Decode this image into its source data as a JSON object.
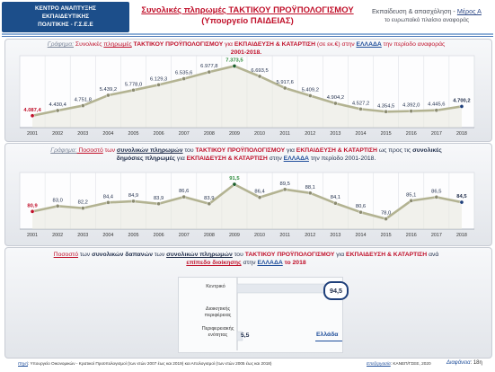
{
  "header": {
    "logo_lines": [
      "ΚΕΝΤΡΟ ΑΝΑΠΤΥΞΗΣ",
      "ΕΚΠΑΙΔΕΥΤΙΚΗΣ",
      "ΠΟΛΙΤΙΚΗΣ - Γ.Σ.Ε.Ε"
    ],
    "title_line1": "Συνολικές πληρωμές ΤΑΚΤΙΚΟΥ ΠΡΟΫΠΟΛΟΓΙΣΜΟΥ",
    "title_line2": "(Υπουργείο ΠΑΙΔΕΙΑΣ)",
    "right_line1_prefix": "Εκπαίδευση & απασχόληση - ",
    "right_line1_link": "Μέρος Α",
    "right_line2": "το ευρωπαϊκό πλαίσιο αναφοράς"
  },
  "panel1": {
    "label": "Γράφημα:",
    "t1": "Συνολικές ",
    "t2": "πληρωμές",
    "t3": " ΤΑΚΤΙΚΟΥ ΠΡΟΫΠΟΛΟΓΙΣΜΟΥ",
    "t4": " για ",
    "t5": "ΕΚΠΑΙΔΕΥΣΗ & ΚΑΤΑΡΤΙΣΗ",
    "t6": " (σε εκ.€) στην ",
    "t7": "ΕΛΛΑΔΑ",
    "t8": " την περίοδο αναφοράς",
    "t9": "2001-2018."
  },
  "panel2": {
    "label": "Γράφημα:",
    "t1": " Ποσοστό",
    "t2": " των ",
    "t3": "συνολικών πληρωμών",
    "t4": " του ",
    "t5": "ΤΑΚΤΙΚΟΥ ΠΡΟΫΠΟΛΟΓΙΣΜΟΥ",
    "t6": " για ",
    "t7": "ΕΚΠΑΙΔΕΥΣΗ & ΚΑΤΑΡΤΙΣΗ",
    "t8": " ως προς τις ",
    "t9": "συνολικές",
    "t10": "δημόσιες πληρωμές",
    "t11": " για ",
    "t12": "ΕΚΠΑΙΔΕΥΣΗ & ΚΑΤΑΡΤΙΣΗ",
    "t13": " στην ",
    "t14": "ΕΛΛΑΔΑ",
    "t15": " την περίοδο 2001-2018."
  },
  "panel3": {
    "t1": "Ποσοστό",
    "t2": " των ",
    "t3": "συνολικών δαπανών",
    "t4": " των ",
    "t5": "συνολικών πληρωμών",
    "t6": " του ",
    "t7": "ΤΑΚΤΙΚΟΥ ΠΡΟΫΠΟΛΟΓΙΣΜΟΥ",
    "t8": " για ",
    "t9": "ΕΚΠΑΙΔΕΥΣΗ & ΚΑΤΑΡΤΙΣΗ",
    "t10": " ανά",
    "t11": "επίπεδο διοίκησης",
    "t12": " στην ",
    "t13": "ΕΛΛΑΔΑ",
    "t14": " το 2018"
  },
  "footer": {
    "source_label": "Πηγή",
    "source_text": ": Υπουργείο Οικονομικών - Κρατικοί Προϋπολογισμοί (των ετών 2007 έως και 2019) και Απολογισμοί (των ετών 2005 έως και 2018)",
    "elab_label": "Επεξεργασία",
    "elab_text": ": ΚΑΝΕΠ/ΓΣΕΕ, 2020",
    "slide_label": "Διαφάνεια",
    "slide_text": ": 18η"
  },
  "colors": {
    "title_red": "#c0102a",
    "navy": "#1e4d9a",
    "line": "#b3b392",
    "first_point": "#c0102a",
    "peak_point": "#1c5e2a",
    "last_point": "#1e3f7a"
  },
  "chart_data": [
    {
      "type": "line",
      "x": [
        "2001",
        "2002",
        "2003",
        "2004",
        "2005",
        "2006",
        "2007",
        "2008",
        "2009",
        "2010",
        "2011",
        "2012",
        "2013",
        "2014",
        "2015",
        "2016",
        "2017",
        "2018"
      ],
      "values": [
        4087.4,
        4430.4,
        4751.8,
        5439.2,
        5778.0,
        6129.3,
        6535.6,
        6977.8,
        7373.5,
        6693.5,
        5917.6,
        5409.2,
        4904.2,
        4527.2,
        4354.5,
        4392.0,
        4445.6,
        4700.2
      ],
      "labels": [
        "4.087,4",
        "4.430,4",
        "4.751,8",
        "5.439,2",
        "5.778,0",
        "6.129,3",
        "6.535,6",
        "6.977,8",
        "7.373,5",
        "6.693,5",
        "5.917,6",
        "5.409,2",
        "4.904,2",
        "4.527,2",
        "4.354,5",
        "4.392,0",
        "4.445,6",
        "4.700,2"
      ],
      "grid": true
    },
    {
      "type": "line",
      "x": [
        "2001",
        "2002",
        "2003",
        "2004",
        "2005",
        "2006",
        "2007",
        "2008",
        "2009",
        "2010",
        "2011",
        "2012",
        "2013",
        "2014",
        "2015",
        "2016",
        "2017",
        "2018"
      ],
      "values": [
        80.9,
        83.0,
        82.2,
        84.4,
        84.9,
        83.9,
        86.6,
        83.9,
        91.5,
        86.4,
        89.5,
        88.1,
        84.1,
        80.6,
        78.0,
        85.1,
        86.5,
        84.5
      ],
      "labels": [
        "80,9",
        "83,0",
        "82,2",
        "84,4",
        "84,9",
        "83,9",
        "86,6",
        "83,9",
        "91,5",
        "86,4",
        "89,5",
        "88,1",
        "84,1",
        "80,6",
        "78,0",
        "85,1",
        "86,5",
        "84,5"
      ],
      "grid": true
    },
    {
      "type": "bar",
      "orientation": "horizontal",
      "categories": [
        "Κεντρικό",
        "Διοικητικής περιφέρειας",
        "Περιφερειακής ενότητας"
      ],
      "values": [
        94.5,
        0,
        5.5
      ],
      "labels": [
        "94,5",
        "",
        "5,5"
      ],
      "legend": [
        "Ελλάδα"
      ],
      "xlim": [
        0,
        100
      ]
    }
  ]
}
